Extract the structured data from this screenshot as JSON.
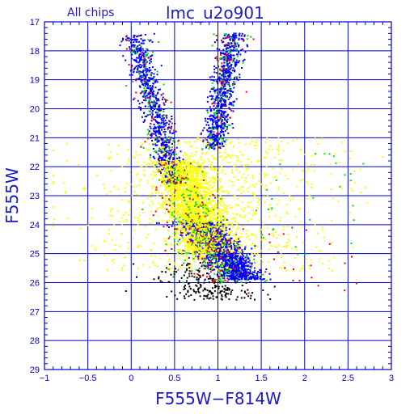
{
  "header": {
    "subset_label": "All chips",
    "title": "lmc_u2o901"
  },
  "colors": {
    "axis": "#0000cc",
    "grid": "#0000cc",
    "text": "#1a1acc",
    "blue": "#0000ff",
    "yellow": "#ffff00",
    "green": "#00e000",
    "red": "#ff0000",
    "black": "#000000"
  },
  "chart_data": {
    "type": "scatter",
    "title": "lmc_u2o901",
    "subtitle": "All chips",
    "xlabel": "F555W−F814W",
    "ylabel": "F555W",
    "xlim": [
      -1,
      3
    ],
    "ylim": [
      29,
      17
    ],
    "y_inverted": true,
    "grid": true,
    "x_ticks": [
      -1,
      -0.5,
      0,
      0.5,
      1,
      1.5,
      2,
      2.5,
      3
    ],
    "x_tick_labels": [
      "−1",
      "−0.5",
      "0",
      "0.5",
      "1",
      "1.5",
      "2",
      "2.5",
      "3"
    ],
    "y_ticks": [
      17,
      18,
      19,
      20,
      21,
      22,
      23,
      24,
      25,
      26,
      27,
      28,
      29
    ],
    "y_tick_labels": [
      "17",
      "18",
      "19",
      "20",
      "21",
      "22",
      "23",
      "24",
      "25",
      "26",
      "27",
      "28",
      "29"
    ],
    "series": [
      {
        "color": "#000000",
        "approx_count": 200,
        "region": {
          "x_range": [
            0.4,
            1.8
          ],
          "y_range": [
            25.3,
            26.6
          ]
        }
      },
      {
        "color": "#00e000",
        "approx_count": 350,
        "region": {
          "x_range": [
            0.0,
            1.7
          ],
          "y_range": [
            17.3,
            26.2
          ]
        }
      },
      {
        "color": "#ff0000",
        "approx_count": 200,
        "region": {
          "x_range": [
            0.0,
            1.8
          ],
          "y_range": [
            17.5,
            26.5
          ]
        }
      },
      {
        "color": "#0000ff",
        "approx_count": 2600,
        "region": {
          "x_range": [
            0.0,
            1.6
          ],
          "y_range": [
            17.3,
            26.0
          ]
        },
        "features": [
          "upper main sequence 0.0-0.4 at 17.5-21.5",
          "red clump/giant branch x~0.9-1.1 at 18.0-20.5",
          "dense main sequence 0.6-1.5 at 24.0-26.0"
        ]
      },
      {
        "color": "#ffff00",
        "approx_count": 2200,
        "region": {
          "x_range": [
            -0.9,
            2.9
          ],
          "y_range": [
            21.0,
            26.0
          ]
        },
        "features": [
          "dense core x 0.5-1.0 at 21.8-25.0",
          "scattered halo x -0.9-2.9 at 22-25.5"
        ]
      }
    ]
  }
}
